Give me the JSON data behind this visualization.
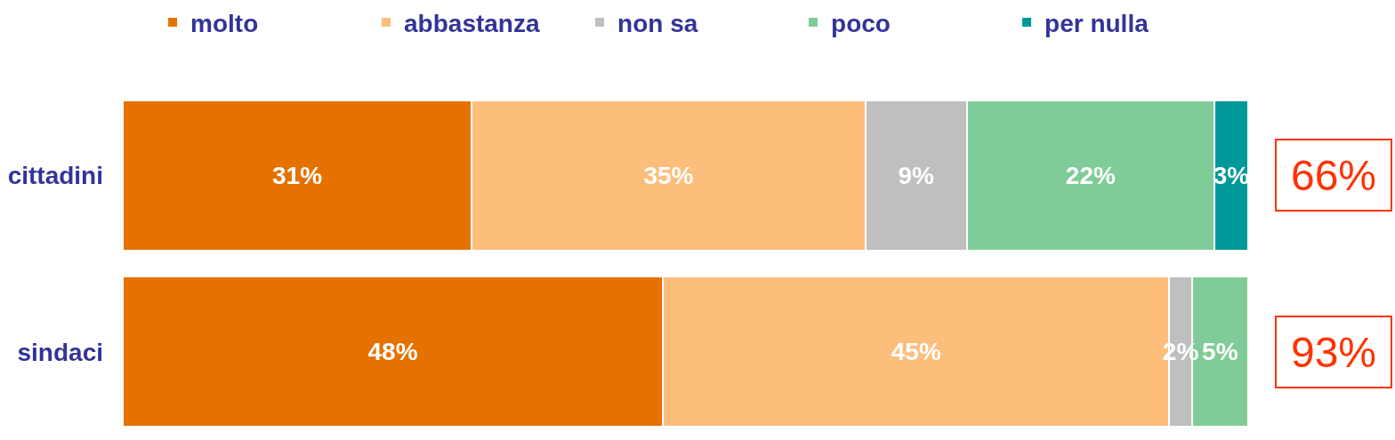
{
  "chart_data": {
    "type": "bar",
    "orientation": "horizontal",
    "stacked": true,
    "categories": [
      "cittadini",
      "sindaci"
    ],
    "series": [
      {
        "name": "molto",
        "color": "#e57200",
        "values": [
          31,
          48
        ],
        "value_labels": [
          "31%",
          "48%"
        ]
      },
      {
        "name": "abbastanza",
        "color": "#fdbe7c",
        "values": [
          35,
          45
        ],
        "value_labels": [
          "35%",
          "45%"
        ]
      },
      {
        "name": "non sa",
        "color": "#bfbfbf",
        "values": [
          9,
          2
        ],
        "value_labels": [
          "9%",
          "2%"
        ]
      },
      {
        "name": "poco",
        "color": "#80cc98",
        "values": [
          22,
          5
        ],
        "value_labels": [
          "22%",
          "5%"
        ]
      },
      {
        "name": "per nulla",
        "color": "#009999",
        "values": [
          3,
          null
        ],
        "value_labels": [
          "3%",
          null
        ]
      }
    ],
    "xlim": [
      0,
      100
    ],
    "tick_labels": "y",
    "legend": "top",
    "annotations": [
      "66%",
      "93%"
    ]
  }
}
